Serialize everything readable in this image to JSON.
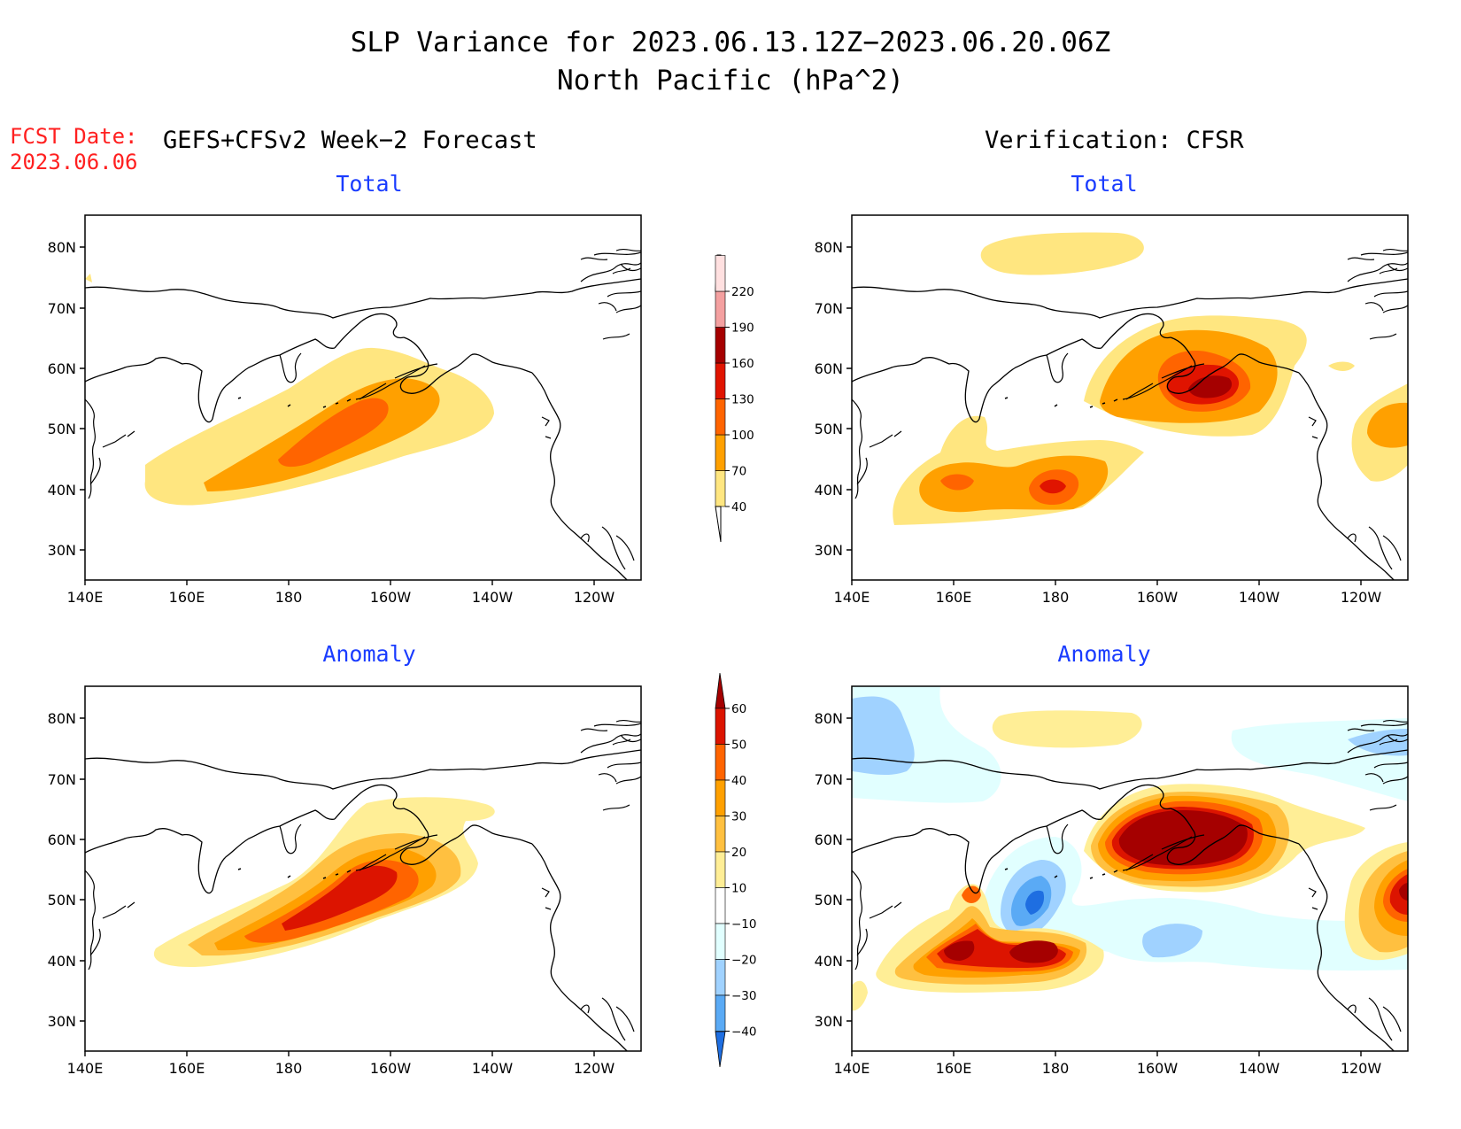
{
  "title": {
    "line1": "SLP Variance for 2023.06.13.12Z−2023.06.20.06Z",
    "line2": "North Pacific (hPa^2)"
  },
  "fcst": {
    "label": "FCST Date:",
    "date": "2023.06.06"
  },
  "forecast_heading": "GEFS+CFSv2 Week−2 Forecast",
  "verification_heading": "Verification: CFSR",
  "panels": [
    {
      "id": "forecast-total",
      "title": "Total"
    },
    {
      "id": "verification-total",
      "title": "Total"
    },
    {
      "id": "forecast-anomaly",
      "title": "Anomaly"
    },
    {
      "id": "verification-anomaly",
      "title": "Anomaly"
    }
  ],
  "axes": {
    "lon_labels": [
      "140E",
      "160E",
      "180",
      "160W",
      "140W",
      "120W"
    ],
    "lat_labels": [
      "80N",
      "70N",
      "60N",
      "50N",
      "40N",
      "30N"
    ]
  },
  "total_colorbar": {
    "levels": [
      "40",
      "70",
      "100",
      "130",
      "160",
      "190",
      "220"
    ],
    "colors": [
      "#ffe680",
      "#ffa000",
      "#ff6400",
      "#e01400",
      "#a50000",
      "#f4a0a0",
      "#ffe0e0"
    ]
  },
  "anomaly_colorbar": {
    "levels": [
      "60",
      "50",
      "40",
      "30",
      "20",
      "10",
      "−10",
      "−20",
      "−30",
      "−40"
    ],
    "colors_top_to_bottom": [
      "#a50000",
      "#dc1400",
      "#ff6400",
      "#ffa000",
      "#ffc040",
      "#ffee96",
      "#ffffff",
      "#e1ffff",
      "#a0d2ff",
      "#5aaaf5",
      "#1e6ee1"
    ]
  }
}
